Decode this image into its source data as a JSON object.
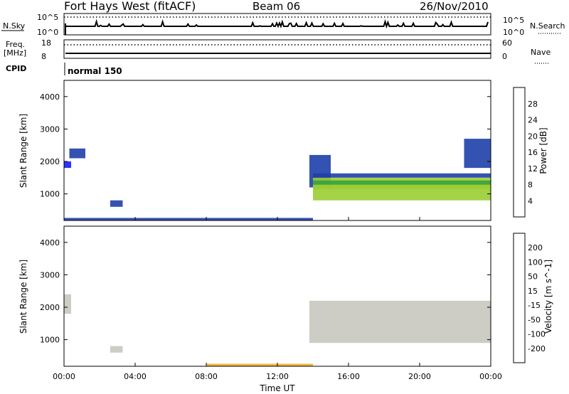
{
  "header": {
    "station": "Fort Hays West (fitACF)",
    "beam": "Beam 06",
    "date": "26/Nov/2010"
  },
  "status_panels": {
    "nsky_label": "N.Sky",
    "nsky_tick_top": "10^5",
    "nsky_tick_bottom": "10^0",
    "nsearch_label": "N.Search",
    "nsearch_tick_top": "10^5",
    "nsearch_tick_bottom": "10^0",
    "freq_label": "Freq.",
    "freq_unit": "[MHz]",
    "freq_tick_top": "18",
    "freq_tick_bottom": "8",
    "nave_label": "Nave",
    "nave_tick_top": "60",
    "nave_tick_bottom": "0",
    "cpid_label": "CPID",
    "cpid_value": "normal 150"
  },
  "chart_data": [
    {
      "type": "heatmap",
      "ylabel": "Slant Range [km]",
      "ylim": [
        180,
        4500
      ],
      "y_ticks": [
        1000,
        2000,
        3000,
        4000
      ],
      "xlim": [
        0,
        24
      ],
      "colorbar": {
        "label": "Power [dB]",
        "range": [
          0,
          32
        ],
        "ticks": [
          4,
          8,
          12,
          16,
          20,
          24,
          28
        ],
        "colors": [
          "#1a1aff",
          "#1e3fa8",
          "#2f7f7f",
          "#3aa040",
          "#9acd32",
          "#f0e020",
          "#ff9a00",
          "#ff5000",
          "#e00000"
        ]
      },
      "regions": [
        {
          "t0": 0.0,
          "t1": 0.4,
          "r0": 1800,
          "r1": 2000,
          "value": 3
        },
        {
          "t0": 0.3,
          "t1": 1.2,
          "r0": 2100,
          "r1": 2400,
          "value": 4
        },
        {
          "t0": 2.6,
          "t1": 3.3,
          "r0": 600,
          "r1": 800,
          "value": 4
        },
        {
          "t0": 13.8,
          "t1": 15.0,
          "r0": 1200,
          "r1": 2200,
          "value": 5
        },
        {
          "t0": 14.0,
          "t1": 24.0,
          "r0": 800,
          "r1": 1500,
          "value": 16
        },
        {
          "t0": 22.5,
          "t1": 24.0,
          "r0": 1800,
          "r1": 2700,
          "value": 4
        },
        {
          "t0": 0.0,
          "t1": 14.0,
          "r0": 180,
          "r1": 260,
          "value": 6
        }
      ]
    },
    {
      "type": "heatmap",
      "ylabel": "Slant Range [km]",
      "xlabel": "Time UT",
      "ylim": [
        180,
        4500
      ],
      "y_ticks": [
        1000,
        2000,
        3000,
        4000
      ],
      "xlim": [
        0,
        24
      ],
      "x_ticks": [
        "00:00",
        "04:00",
        "08:00",
        "12:00",
        "16:00",
        "20:00",
        "00:00"
      ],
      "colorbar": {
        "label": "Velocity [m s^-1]",
        "ticks": [
          "200",
          "100",
          "50",
          "15",
          "-15",
          "-50",
          "-100",
          "-200"
        ],
        "colors": [
          "#1f3fa8",
          "#2e6b8e",
          "#3a9a55",
          "#6acd3a",
          "#c8c8c0",
          "#f0b030",
          "#ff8c00",
          "#ff5000",
          "#e00000"
        ]
      },
      "regions": [
        {
          "t0": 0.0,
          "t1": 0.4,
          "r0": 1800,
          "r1": 2400,
          "value": 0
        },
        {
          "t0": 2.6,
          "t1": 3.3,
          "r0": 600,
          "r1": 800,
          "value": 0
        },
        {
          "t0": 13.8,
          "t1": 24.0,
          "r0": 900,
          "r1": 2200,
          "value": 0
        },
        {
          "t0": 8.0,
          "t1": 14.0,
          "r0": 180,
          "r1": 260,
          "value": -50
        }
      ]
    }
  ]
}
